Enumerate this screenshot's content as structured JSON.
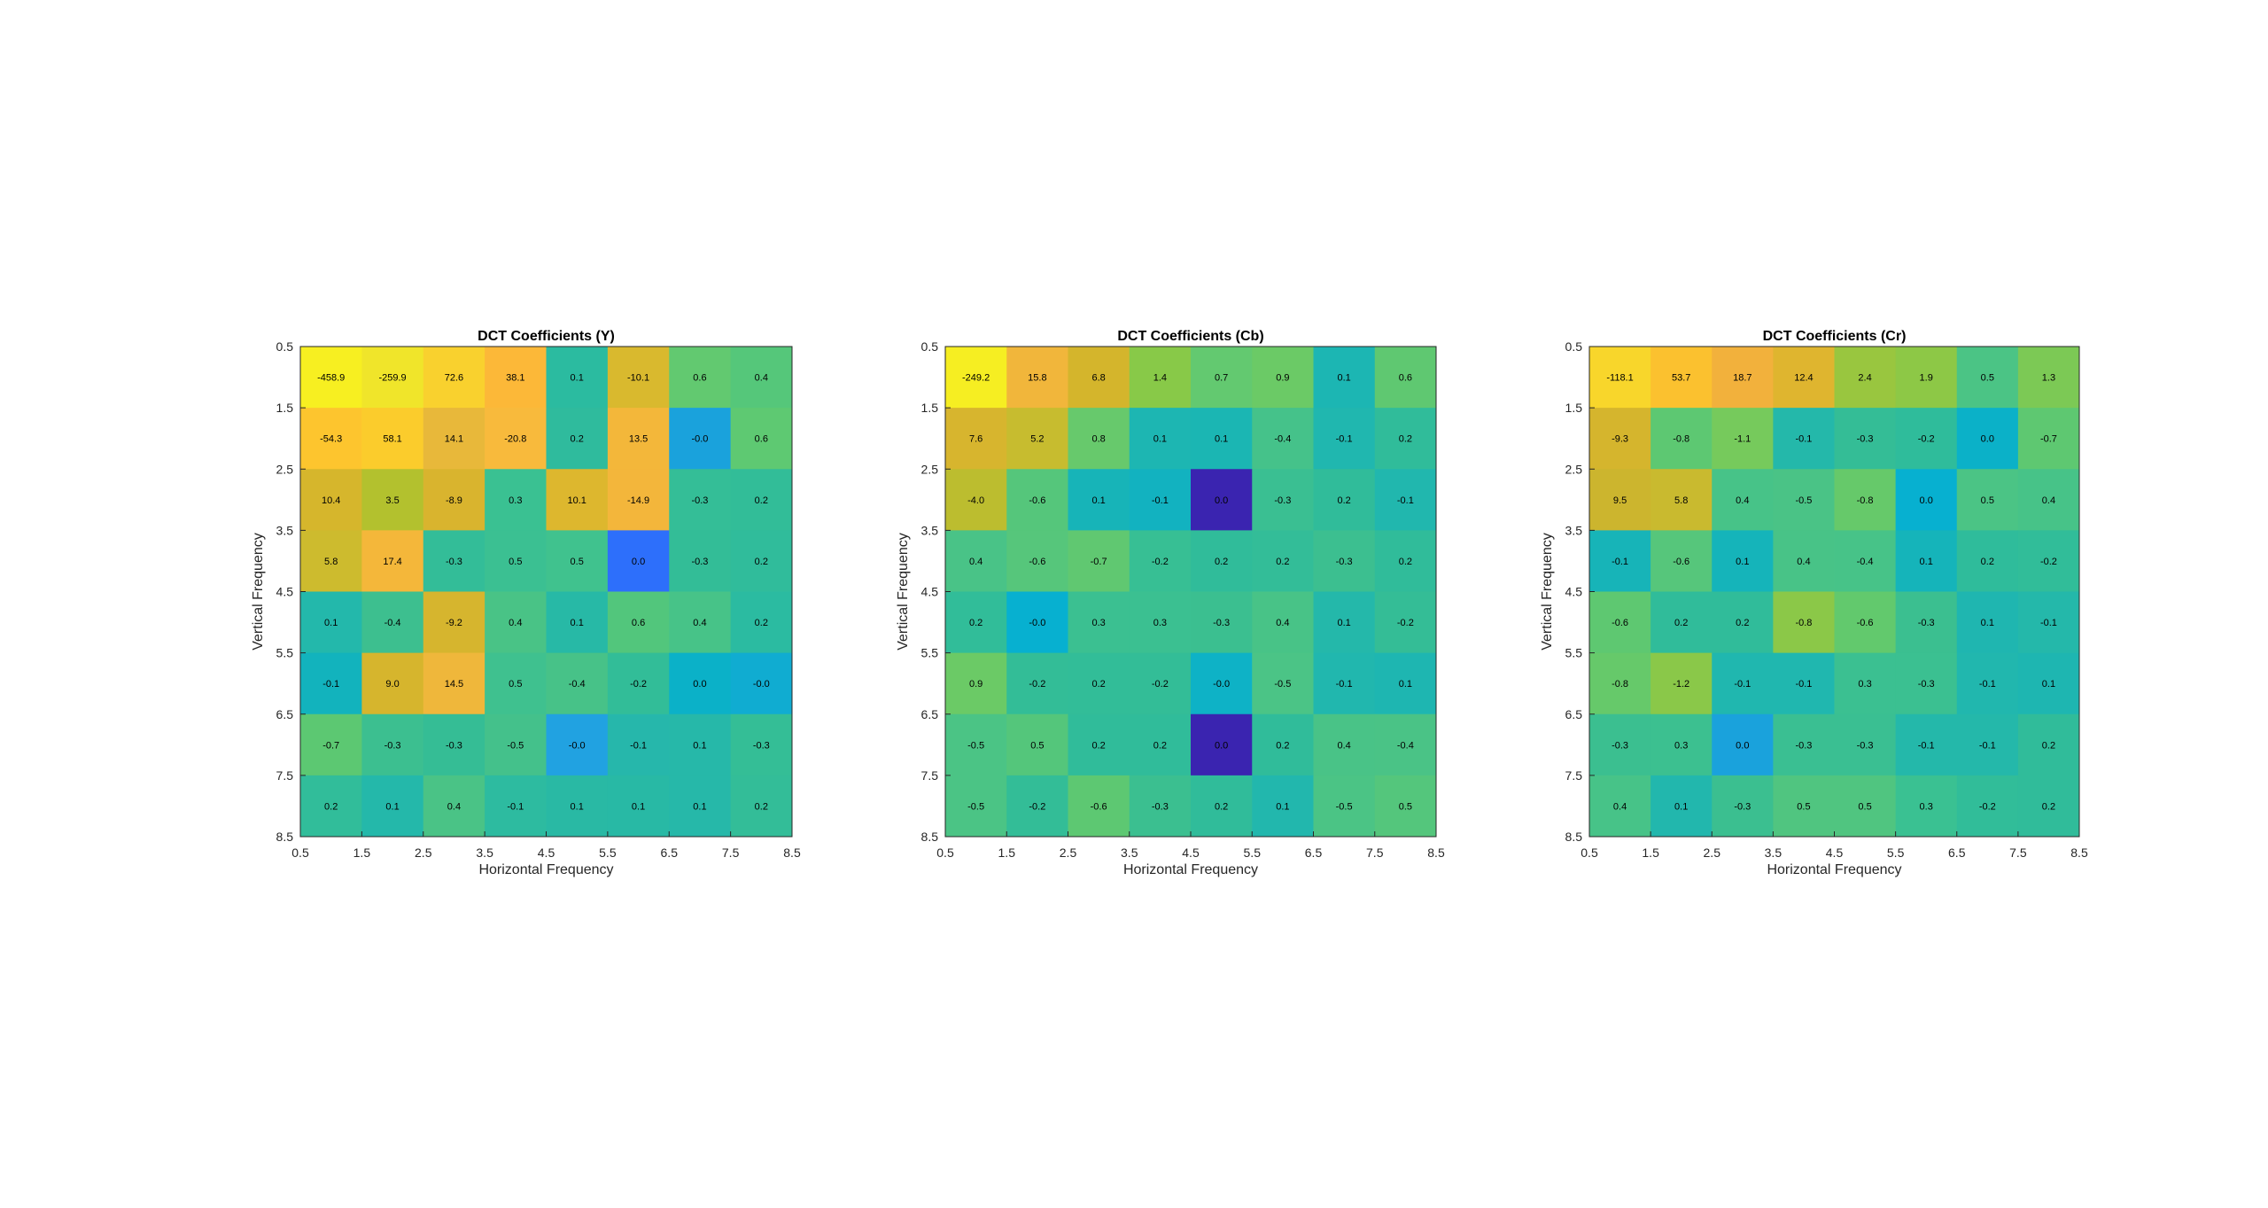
{
  "chart_data": [
    {
      "type": "heatmap",
      "title": "DCT Coefficients (Y)",
      "xlabel": "Horizontal Frequency",
      "ylabel": "Vertical Frequency",
      "xlim": [
        0.5,
        8.5
      ],
      "ylim": [
        0.5,
        8.5
      ],
      "x_ticks": [
        "0.5",
        "1.5",
        "2.5",
        "3.5",
        "4.5",
        "5.5",
        "6.5",
        "7.5",
        "8.5"
      ],
      "y_ticks": [
        "0.5",
        "1.5",
        "2.5",
        "3.5",
        "4.5",
        "5.5",
        "6.5",
        "7.5",
        "8.5"
      ],
      "y_direction": "reversed",
      "grid": false,
      "colormap": "parula",
      "values": [
        [
          "-458.9",
          "-259.9",
          "72.6",
          "38.1",
          "0.1",
          "-10.1",
          "0.6",
          "0.4"
        ],
        [
          "-54.3",
          "58.1",
          "14.1",
          "-20.8",
          "0.2",
          "13.5",
          "-0.0",
          "0.6"
        ],
        [
          "10.4",
          "3.5",
          "-8.9",
          "0.3",
          "10.1",
          "-14.9",
          "-0.3",
          "0.2"
        ],
        [
          "5.8",
          "17.4",
          "-0.3",
          "0.5",
          "0.5",
          "0.0",
          "-0.3",
          "0.2"
        ],
        [
          "0.1",
          "-0.4",
          "-9.2",
          "0.4",
          "0.1",
          "0.6",
          "0.4",
          "0.2"
        ],
        [
          "-0.1",
          "9.0",
          "14.5",
          "0.5",
          "-0.4",
          "-0.2",
          "0.0",
          "-0.0"
        ],
        [
          "-0.7",
          "-0.3",
          "-0.3",
          "-0.5",
          "-0.0",
          "-0.1",
          "0.1",
          "-0.3"
        ],
        [
          "0.2",
          "0.1",
          "0.4",
          "-0.1",
          "0.1",
          "0.1",
          "0.1",
          "0.2"
        ]
      ],
      "cell_colors": [
        [
          "#f7ef21",
          "#f0e52a",
          "#f9d12e",
          "#fcb838",
          "#2bbba0",
          "#d9b92e",
          "#62c970",
          "#55c77a"
        ],
        [
          "#fdc52e",
          "#fbcc2c",
          "#e8b83a",
          "#f8ba3c",
          "#2fbb9d",
          "#f3b73a",
          "#1aa2dc",
          "#5ec972"
        ],
        [
          "#d6b62c",
          "#b3c12e",
          "#d9b42e",
          "#3ac192",
          "#ddb72e",
          "#f3b63b",
          "#34be97",
          "#32bd98"
        ],
        [
          "#cdbb2e",
          "#f4b73a",
          "#33bd98",
          "#3bc092",
          "#40c28e",
          "#2d6ffb",
          "#33bd97",
          "#30bc9b"
        ],
        [
          "#23b8ab",
          "#3dbf8f",
          "#d6b52e",
          "#49c386",
          "#27b9a6",
          "#52c67c",
          "#47c388",
          "#2bbba1"
        ],
        [
          "#12b3bd",
          "#d6b52d",
          "#efb73b",
          "#3fc18f",
          "#47c288",
          "#32bd98",
          "#0bb1c8",
          "#10acd1"
        ],
        [
          "#5cc872",
          "#3cbf90",
          "#35bd95",
          "#44c18b",
          "#21a2e1",
          "#26b7ab",
          "#26b8a9",
          "#34be96"
        ],
        [
          "#31bd9a",
          "#24b8aa",
          "#4ac386",
          "#2dbba0",
          "#29b9a4",
          "#28b9a5",
          "#26b8a9",
          "#33bd98"
        ]
      ]
    },
    {
      "type": "heatmap",
      "title": "DCT Coefficients (Cb)",
      "xlabel": "Horizontal Frequency",
      "ylabel": "Vertical Frequency",
      "xlim": [
        0.5,
        8.5
      ],
      "ylim": [
        0.5,
        8.5
      ],
      "x_ticks": [
        "0.5",
        "1.5",
        "2.5",
        "3.5",
        "4.5",
        "5.5",
        "6.5",
        "7.5",
        "8.5"
      ],
      "y_ticks": [
        "0.5",
        "1.5",
        "2.5",
        "3.5",
        "4.5",
        "5.5",
        "6.5",
        "7.5",
        "8.5"
      ],
      "y_direction": "reversed",
      "grid": false,
      "colormap": "parula",
      "values": [
        [
          "-249.2",
          "15.8",
          "6.8",
          "1.4",
          "0.7",
          "0.9",
          "0.1",
          "0.6"
        ],
        [
          "7.6",
          "5.2",
          "0.8",
          "0.1",
          "0.1",
          "-0.4",
          "-0.1",
          "0.2"
        ],
        [
          "-4.0",
          "-0.6",
          "0.1",
          "-0.1",
          "0.0",
          "-0.3",
          "0.2",
          "-0.1"
        ],
        [
          "0.4",
          "-0.6",
          "-0.7",
          "-0.2",
          "0.2",
          "0.2",
          "-0.3",
          "0.2"
        ],
        [
          "0.2",
          "-0.0",
          "0.3",
          "0.3",
          "-0.3",
          "0.4",
          "0.1",
          "-0.2"
        ],
        [
          "0.9",
          "-0.2",
          "0.2",
          "-0.2",
          "-0.0",
          "-0.5",
          "-0.1",
          "0.1"
        ],
        [
          "-0.5",
          "0.5",
          "0.2",
          "0.2",
          "0.0",
          "0.2",
          "0.4",
          "-0.4"
        ],
        [
          "-0.5",
          "-0.2",
          "-0.6",
          "-0.3",
          "0.2",
          "0.1",
          "-0.5",
          "0.5"
        ]
      ],
      "cell_colors": [
        [
          "#f6ee22",
          "#f1b63b",
          "#d4b52c",
          "#88c948",
          "#63c970",
          "#6bca66",
          "#1cb6b3",
          "#5fc871"
        ],
        [
          "#d7b52e",
          "#c7bc2f",
          "#67c96c",
          "#1db6b2",
          "#1bb6b3",
          "#45c28a",
          "#20b7af",
          "#30bc9a"
        ],
        [
          "#bcbd2f",
          "#55c67b",
          "#17b4b8",
          "#12b2c0",
          "#3a24b0",
          "#3abf92",
          "#30bc9a",
          "#21b7ae"
        ],
        [
          "#49c387",
          "#56c67b",
          "#60c871",
          "#37bf94",
          "#30bc9a",
          "#33bd98",
          "#3cbf90",
          "#30bc9a"
        ],
        [
          "#31bd99",
          "#07b0d0",
          "#3bc091",
          "#3bc091",
          "#3bbf90",
          "#48c387",
          "#24b8aa",
          "#34bd96"
        ],
        [
          "#6bca66",
          "#33bd97",
          "#32bd98",
          "#33bd97",
          "#0eb2c6",
          "#4bc486",
          "#21b7ae",
          "#1eb6b1"
        ],
        [
          "#4bc485",
          "#54c67b",
          "#30bc9a",
          "#30bc9a",
          "#3a24b0",
          "#30bc9a",
          "#49c387",
          "#4ac386"
        ],
        [
          "#4bc485",
          "#33bd97",
          "#5dc872",
          "#3bbf90",
          "#30bc9a",
          "#22b7ad",
          "#4bc485",
          "#54c67c"
        ]
      ]
    },
    {
      "type": "heatmap",
      "title": "DCT Coefficients (Cr)",
      "xlabel": "Horizontal Frequency",
      "ylabel": "Vertical Frequency",
      "xlim": [
        0.5,
        8.5
      ],
      "ylim": [
        0.5,
        8.5
      ],
      "x_ticks": [
        "0.5",
        "1.5",
        "2.5",
        "3.5",
        "4.5",
        "5.5",
        "6.5",
        "7.5",
        "8.5"
      ],
      "y_ticks": [
        "0.5",
        "1.5",
        "2.5",
        "3.5",
        "4.5",
        "5.5",
        "6.5",
        "7.5",
        "8.5"
      ],
      "y_direction": "reversed",
      "grid": false,
      "colormap": "parula",
      "values": [
        [
          "-118.1",
          "53.7",
          "18.7",
          "12.4",
          "2.4",
          "1.9",
          "0.5",
          "1.3"
        ],
        [
          "-9.3",
          "-0.8",
          "-1.1",
          "-0.1",
          "-0.3",
          "-0.2",
          "0.0",
          "-0.7"
        ],
        [
          "9.5",
          "5.8",
          "0.4",
          "-0.5",
          "-0.8",
          "0.0",
          "0.5",
          "0.4"
        ],
        [
          "-0.1",
          "-0.6",
          "0.1",
          "0.4",
          "-0.4",
          "0.1",
          "0.2",
          "-0.2"
        ],
        [
          "-0.6",
          "0.2",
          "0.2",
          "-0.8",
          "-0.6",
          "-0.3",
          "0.1",
          "-0.1"
        ],
        [
          "-0.8",
          "-1.2",
          "-0.1",
          "-0.1",
          "0.3",
          "-0.3",
          "-0.1",
          "0.1"
        ],
        [
          "-0.3",
          "0.3",
          "0.0",
          "-0.3",
          "-0.3",
          "-0.1",
          "-0.1",
          "0.2"
        ],
        [
          "0.4",
          "0.1",
          "-0.3",
          "0.5",
          "0.5",
          "0.3",
          "-0.2",
          "0.2"
        ]
      ],
      "cell_colors": [
        [
          "#f8d62b",
          "#fbc12f",
          "#f2b13c",
          "#dfb52f",
          "#99c63f",
          "#8dc846",
          "#4bc485",
          "#7cc955"
        ],
        [
          "#d5b52d",
          "#5dc872",
          "#76ca5c",
          "#24b8aa",
          "#34bd96",
          "#2fbc9b",
          "#0bb1c8",
          "#5ec871"
        ],
        [
          "#ccb52e",
          "#c9ba2f",
          "#47c388",
          "#4ac386",
          "#66c96a",
          "#07b0d0",
          "#4bc485",
          "#47c388"
        ],
        [
          "#17b4b8",
          "#56c67b",
          "#15b4ba",
          "#48c387",
          "#47c388",
          "#15b4ba",
          "#2fbc9b",
          "#31bd99"
        ],
        [
          "#5ec871",
          "#30bc9a",
          "#30bc9a",
          "#8bc848",
          "#62c96d",
          "#3bbf90",
          "#1fb6b0",
          "#24b8aa"
        ],
        [
          "#66c96a",
          "#8ac849",
          "#20b7af",
          "#20b7af",
          "#3bc091",
          "#3bc091",
          "#21b7ae",
          "#1eb6b1"
        ],
        [
          "#3bbf90",
          "#3cc090",
          "#1aa2dc",
          "#3abf92",
          "#3abf92",
          "#24b8aa",
          "#24b8aa",
          "#30bc9a"
        ],
        [
          "#47c388",
          "#22b7ad",
          "#3bbf90",
          "#50c580",
          "#50c580",
          "#3ac192",
          "#31bd99",
          "#30bc9a"
        ]
      ]
    }
  ]
}
